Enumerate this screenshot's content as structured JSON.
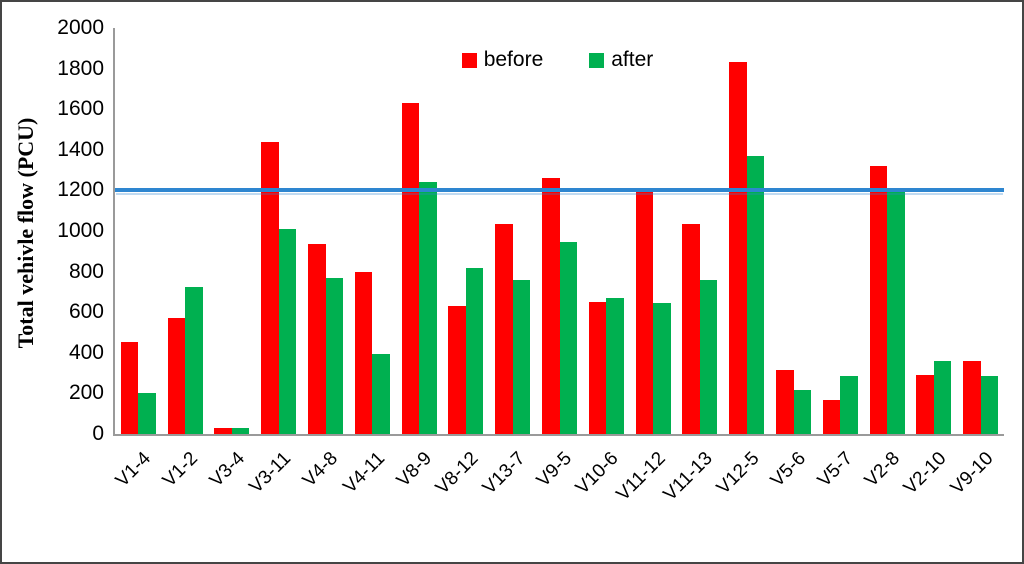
{
  "chart_data": {
    "type": "bar",
    "title": "",
    "xlabel": "",
    "ylabel": "Total vehivle flow (PCU)",
    "ylim": [
      0,
      2000
    ],
    "ytick_step": 200,
    "yticks": [
      0,
      200,
      400,
      600,
      800,
      1000,
      1200,
      1400,
      1600,
      1800,
      2000
    ],
    "grid": false,
    "legend_position": "top-center",
    "categories": [
      "V1-4",
      "V1-2",
      "V3-4",
      "V3-11",
      "V4-8",
      "V4-11",
      "V8-9",
      "V8-12",
      "V13-7",
      "V9-5",
      "V10-6",
      "V11-12",
      "V11-13",
      "V12-5",
      "V5-6",
      "V5-7",
      "V2-8",
      "V2-10",
      "V9-10"
    ],
    "series": [
      {
        "name": "before",
        "color": "#FF0000",
        "values": [
          455,
          570,
          30,
          1440,
          935,
          800,
          1630,
          630,
          1035,
          1260,
          650,
          1195,
          1035,
          1835,
          315,
          170,
          1320,
          290,
          360
        ]
      },
      {
        "name": "after",
        "color": "#00B050",
        "values": [
          200,
          725,
          30,
          1010,
          770,
          395,
          1240,
          820,
          760,
          945,
          670,
          645,
          760,
          1370,
          215,
          285,
          1190,
          360,
          285
        ]
      }
    ],
    "reference_line": {
      "value": 1200,
      "color": "#2E86D0"
    }
  },
  "colors": {
    "axis_line": "#9a9a9a",
    "frame_border": "#454545",
    "text": "#000000"
  }
}
